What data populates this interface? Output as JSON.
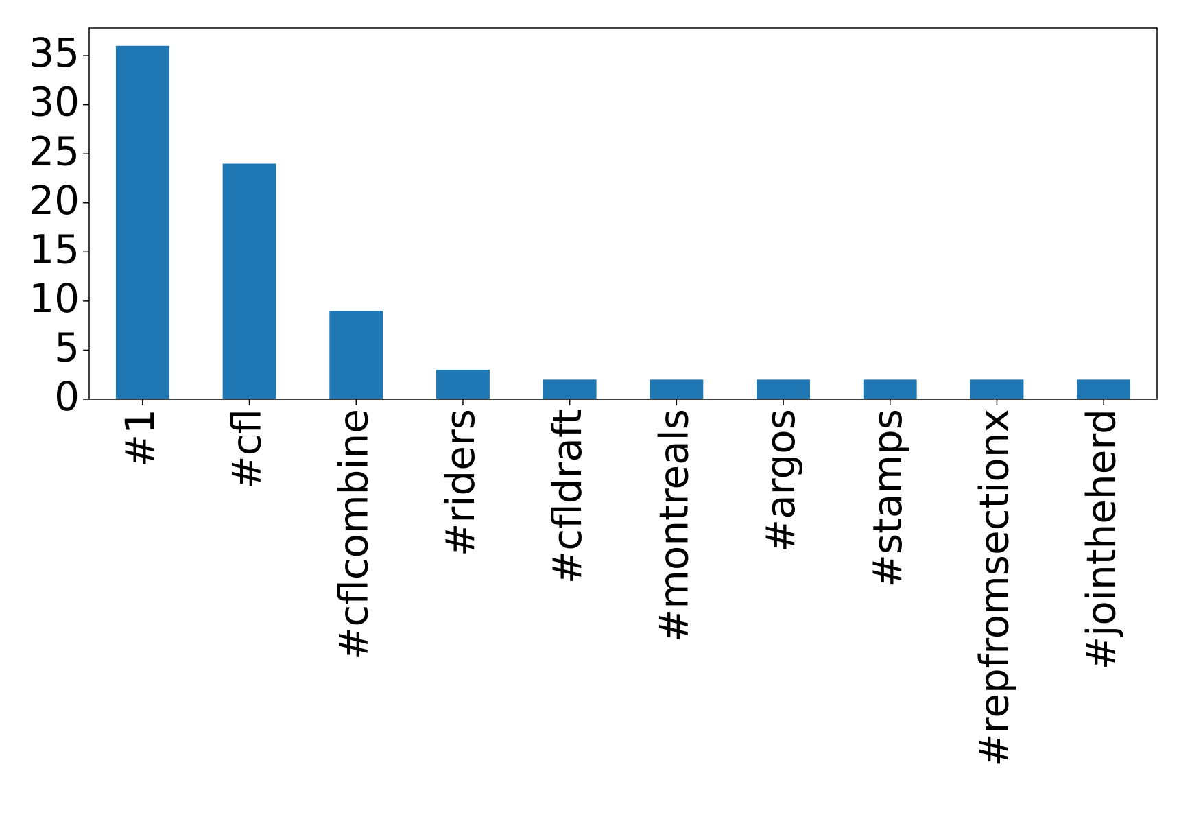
{
  "chart_data": {
    "type": "bar",
    "categories": [
      "#1",
      "#cfl",
      "#cflcombine",
      "#riders",
      "#cfldraft",
      "#montreals",
      "#argos",
      "#stamps",
      "#repfromsectionx",
      "#jointheherd"
    ],
    "values": [
      36,
      24,
      9,
      3,
      2,
      2,
      2,
      2,
      2,
      2
    ],
    "color": "#1f77b4",
    "ylim": [
      0,
      37.8
    ],
    "yticks": [
      0,
      5,
      10,
      15,
      20,
      25,
      30,
      35
    ],
    "grid": false
  }
}
